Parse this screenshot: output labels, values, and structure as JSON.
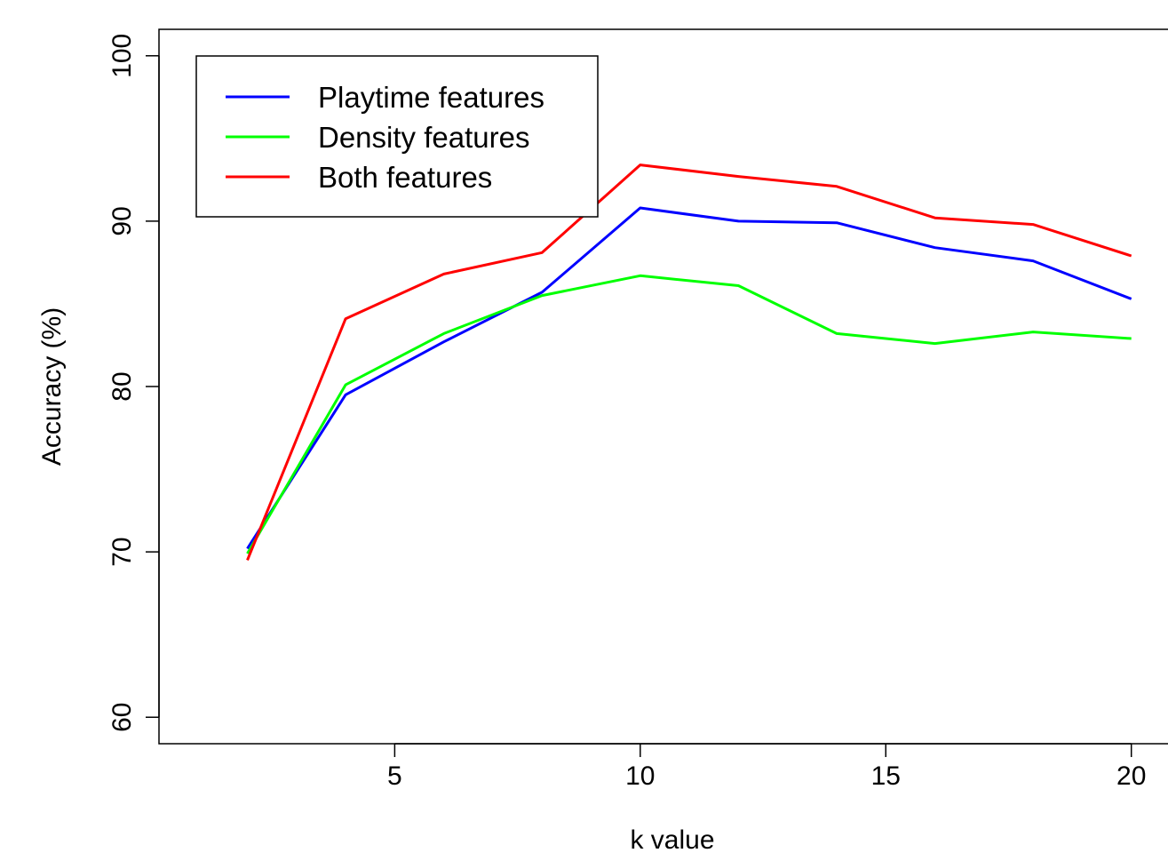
{
  "chart_data": {
    "type": "line",
    "title": "",
    "xlabel": "k value",
    "ylabel": "Accuracy (%)",
    "xlim": [
      0.2,
      21
    ],
    "ylim": [
      58.4,
      101.6
    ],
    "xticks": [
      5,
      10,
      15,
      20
    ],
    "yticks": [
      60,
      70,
      80,
      90,
      100
    ],
    "grid": false,
    "legend_position": "top-left",
    "x": [
      2,
      4,
      6,
      8,
      10,
      12,
      14,
      16,
      18,
      20
    ],
    "series": [
      {
        "name": "Playtime features",
        "color": "#0000ff",
        "values": [
          70.2,
          79.5,
          82.7,
          85.7,
          90.8,
          90.0,
          89.9,
          88.4,
          87.6,
          85.3
        ]
      },
      {
        "name": "Density features",
        "color": "#00ff00",
        "values": [
          69.9,
          80.1,
          83.2,
          85.5,
          86.7,
          86.1,
          83.2,
          82.6,
          83.3,
          82.9
        ]
      },
      {
        "name": "Both features",
        "color": "#ff0000",
        "values": [
          69.5,
          84.1,
          86.8,
          88.1,
          93.4,
          92.7,
          92.1,
          90.2,
          89.8,
          87.9
        ]
      }
    ]
  }
}
